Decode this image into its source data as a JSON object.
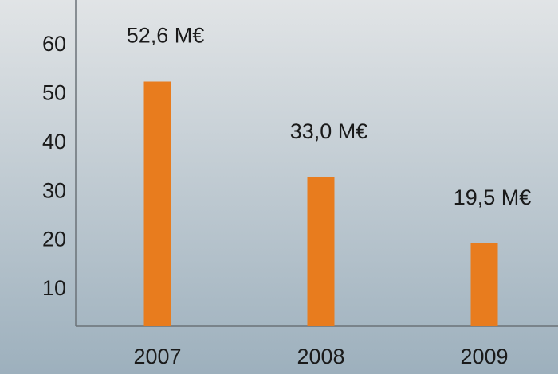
{
  "chart_data": {
    "type": "bar",
    "categories": [
      "2007",
      "2008",
      "2009"
    ],
    "values": [
      52.6,
      33.0,
      19.5
    ],
    "value_labels": [
      "52,6 M€",
      "33,0 M€",
      "19,5 M€"
    ],
    "color": "#e87c1e",
    "ylim": [
      2.5,
      69.3
    ],
    "yticks": [
      10,
      20,
      30,
      40,
      50,
      60
    ],
    "grid": false
  }
}
